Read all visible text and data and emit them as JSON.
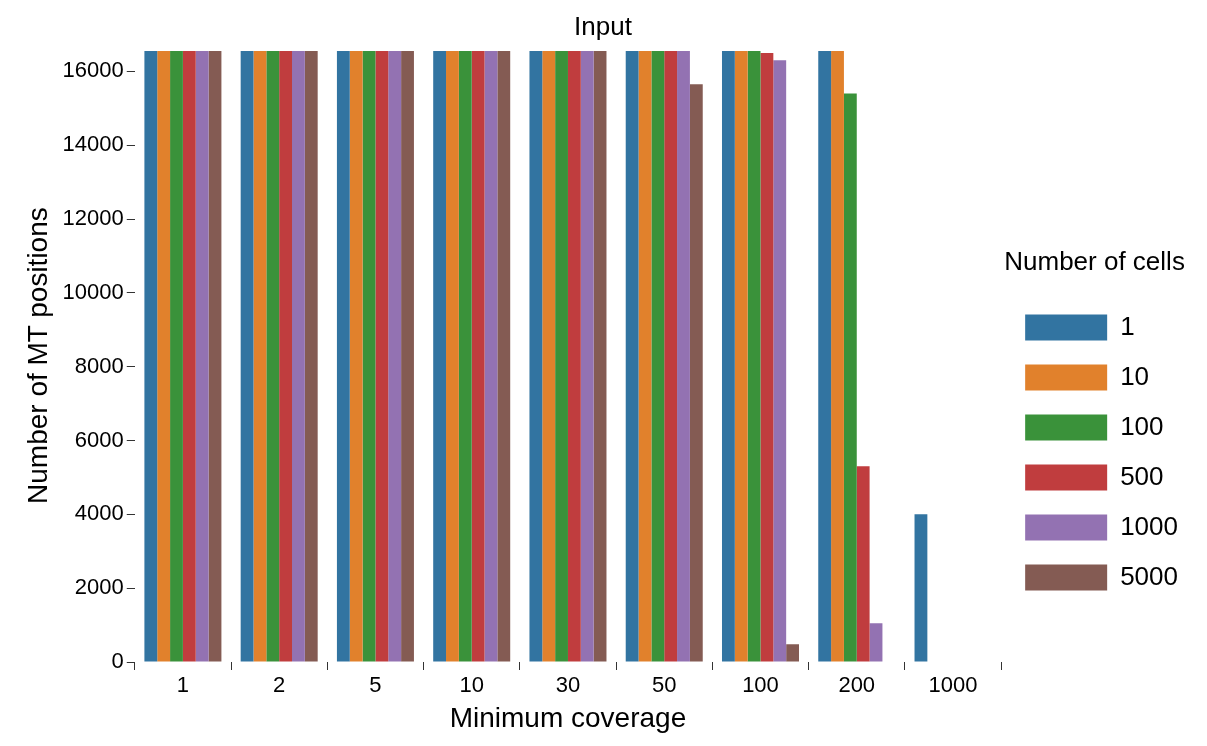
{
  "chart_data": {
    "type": "bar",
    "title": "Input",
    "xlabel": "Minimum coverage",
    "ylabel": "Number of MT positions",
    "legend_title": "Number of cells",
    "legend": "right",
    "grid": false,
    "categories": [
      "1",
      "2",
      "5",
      "10",
      "30",
      "50",
      "100",
      "200",
      "1000"
    ],
    "ylim": [
      0,
      16600
    ],
    "yticks": [
      0,
      2000,
      4000,
      6000,
      8000,
      10000,
      12000,
      14000,
      16000
    ],
    "series": [
      {
        "name": "1",
        "color": "#3274a1",
        "values": [
          16550,
          16550,
          16550,
          16550,
          16550,
          16550,
          16550,
          16550,
          4000
        ]
      },
      {
        "name": "10",
        "color": "#e1812c",
        "values": [
          16550,
          16550,
          16550,
          16550,
          16550,
          16550,
          16550,
          16550,
          0
        ]
      },
      {
        "name": "100",
        "color": "#3a923a",
        "values": [
          16550,
          16550,
          16550,
          16550,
          16550,
          16550,
          16550,
          15400,
          0
        ]
      },
      {
        "name": "500",
        "color": "#c03d3e",
        "values": [
          16550,
          16550,
          16550,
          16550,
          16550,
          16550,
          16500,
          5300,
          0
        ]
      },
      {
        "name": "1000",
        "color": "#9372b2",
        "values": [
          16550,
          16550,
          16550,
          16550,
          16550,
          16550,
          16300,
          1050,
          0
        ]
      },
      {
        "name": "5000",
        "color": "#845b53",
        "values": [
          16550,
          16550,
          16550,
          16550,
          16550,
          15650,
          480,
          0,
          0
        ]
      }
    ]
  }
}
